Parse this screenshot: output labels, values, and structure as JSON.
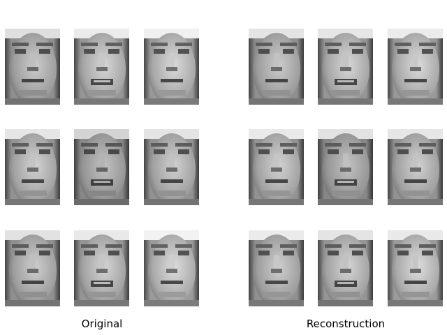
{
  "panels": [
    {
      "caption": "Original",
      "faces": [
        {
          "brightness": 0.95
        },
        {
          "brightness": 1.0
        },
        {
          "brightness": 1.02
        },
        {
          "brightness": 0.98
        },
        {
          "brightness": 0.9
        },
        {
          "brightness": 0.97
        },
        {
          "brightness": 0.96
        },
        {
          "brightness": 0.99
        },
        {
          "brightness": 1.03
        }
      ]
    },
    {
      "caption": "Reconstruction",
      "faces": [
        {
          "brightness": 0.97
        },
        {
          "brightness": 0.98
        },
        {
          "brightness": 1.0
        },
        {
          "brightness": 0.99
        },
        {
          "brightness": 0.96
        },
        {
          "brightness": 0.98
        },
        {
          "brightness": 1.0
        },
        {
          "brightness": 0.97
        },
        {
          "brightness": 0.99
        }
      ]
    }
  ]
}
